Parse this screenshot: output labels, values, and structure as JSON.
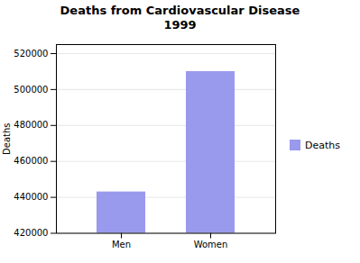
{
  "chart_data": {
    "type": "bar",
    "title": "Deaths from Cardiovascular Disease\n1999",
    "categories": [
      "Men",
      "Women"
    ],
    "values": [
      443000,
      510000
    ],
    "color": "#9999ee",
    "ylabel": "Deaths",
    "ylim": [
      420000,
      525000
    ],
    "yticks": [
      420000,
      440000,
      460000,
      480000,
      500000,
      520000
    ],
    "grid": true,
    "legend": "right",
    "series_name": "Deaths"
  }
}
